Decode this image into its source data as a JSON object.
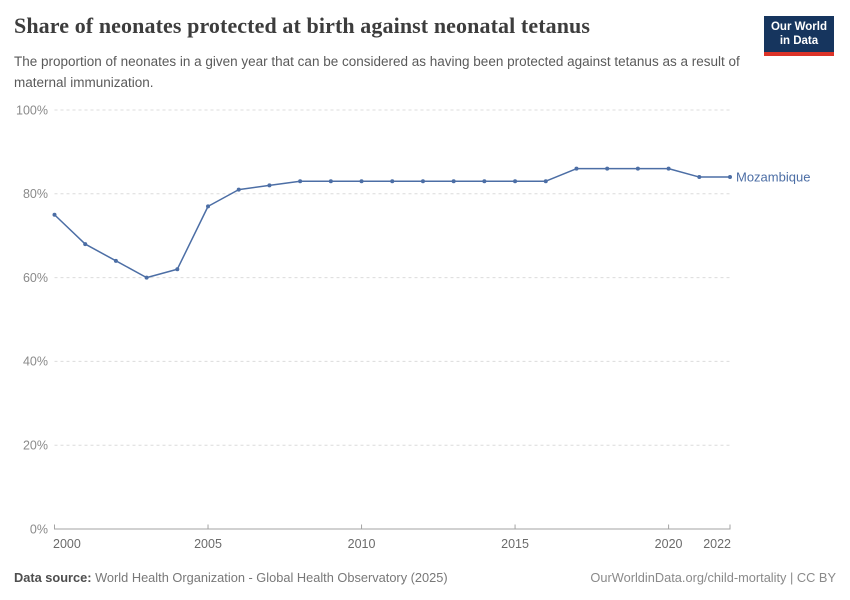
{
  "header": {
    "title": "Share of neonates protected at birth against neonatal tetanus",
    "subtitle": "The proportion of neonates in a given year that can be considered as having been protected against tetanus as a result of maternal immunization.",
    "logo": {
      "line1": "Our World",
      "line2": "in Data"
    }
  },
  "chart_data": {
    "type": "line",
    "title": "Share of neonates protected at birth against neonatal tetanus",
    "x": [
      2000,
      2001,
      2002,
      2003,
      2004,
      2005,
      2006,
      2007,
      2008,
      2009,
      2010,
      2011,
      2012,
      2013,
      2014,
      2015,
      2016,
      2017,
      2018,
      2019,
      2020,
      2021,
      2022
    ],
    "series": [
      {
        "name": "Mozambique",
        "color": "#4c6ea5",
        "values": [
          75,
          68,
          64,
          60,
          62,
          77,
          81,
          82,
          83,
          83,
          83,
          83,
          83,
          83,
          83,
          83,
          83,
          86,
          86,
          86,
          86,
          84,
          84
        ]
      }
    ],
    "xlim": [
      2000,
      2022
    ],
    "ylim": [
      0,
      100
    ],
    "yticks": [
      0,
      20,
      40,
      60,
      80,
      100
    ],
    "ytick_suffix": "%",
    "xticks": [
      2000,
      2005,
      2010,
      2015,
      2020,
      2022
    ],
    "grid": "horizontal-dashed",
    "legend": "line-end-label"
  },
  "footer": {
    "datasource_label": "Data source:",
    "datasource_text": " World Health Organization - Global Health Observatory (2025)",
    "attribution": "OurWorldinData.org/child-mortality | CC BY"
  },
  "colors": {
    "line": "#4c6ea5",
    "gridline": "#dcdcdc",
    "axis": "#a3a3a3",
    "ytick_label": "#8a8a8a",
    "xtick_label": "#6b6b6b",
    "title": "#3d3d3d",
    "subtitle": "#5a5a5a",
    "logo_bg": "#16355e",
    "logo_stripe": "#dc3328"
  }
}
